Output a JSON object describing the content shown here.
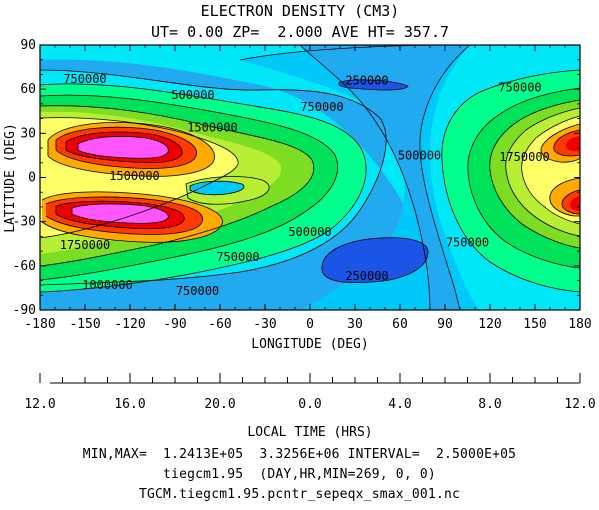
{
  "chart_data": {
    "type": "heatmap",
    "title": "ELECTRON DENSITY (CM3)",
    "subtitle": "UT= 0.00 ZP=  2.000 AVE HT= 357.7",
    "xlabel": "LONGITUDE (DEG)",
    "ylabel": "LATITUDE (DEG)",
    "xlim": [
      -180,
      180
    ],
    "ylim": [
      -90,
      90
    ],
    "x_ticks": [
      -180,
      -150,
      -120,
      -90,
      -60,
      -30,
      0,
      30,
      60,
      90,
      120,
      150,
      180
    ],
    "y_ticks": [
      -90,
      -60,
      -30,
      0,
      30,
      60,
      90
    ],
    "x_ticks_text": [
      "-180",
      "-150",
      "-120",
      "-90",
      "-60",
      "-30",
      "0",
      "30",
      "60",
      "90",
      "120",
      "150",
      "180"
    ],
    "y_ticks_text": [
      "-90",
      "-60",
      "-30",
      "0",
      "30",
      "60",
      "90"
    ],
    "contour_interval": 250000,
    "contour_labels": [
      {
        "text": "750000",
        "lon": -150,
        "lat": 67
      },
      {
        "text": "500000",
        "lon": -78,
        "lat": 56
      },
      {
        "text": "250000",
        "lon": 38,
        "lat": 66
      },
      {
        "text": "750000",
        "lon": 8,
        "lat": 48
      },
      {
        "text": "1500000",
        "lon": -65,
        "lat": 34
      },
      {
        "text": "1500000",
        "lon": -117,
        "lat": 1
      },
      {
        "text": "1750000",
        "lon": -150,
        "lat": -46
      },
      {
        "text": "1000000",
        "lon": -135,
        "lat": -73
      },
      {
        "text": "750000",
        "lon": -75,
        "lat": -77
      },
      {
        "text": "750000",
        "lon": -48,
        "lat": -54
      },
      {
        "text": "500000",
        "lon": 0,
        "lat": -37
      },
      {
        "text": "250000",
        "lon": 38,
        "lat": -67
      },
      {
        "text": "500000",
        "lon": 73,
        "lat": 15
      },
      {
        "text": "750000",
        "lon": 140,
        "lat": 61
      },
      {
        "text": "1750000",
        "lon": 143,
        "lat": 14
      },
      {
        "text": "750000",
        "lon": 105,
        "lat": -44
      }
    ],
    "local_time_axis": {
      "label": "LOCAL TIME (HRS)",
      "tick_labels": [
        {
          "text": "12.0",
          "lon": -180
        },
        {
          "text": "16.0",
          "lon": -120
        },
        {
          "text": "20.0",
          "lon": -60
        },
        {
          "text": "0.0",
          "lon": 0
        },
        {
          "text": "4.0",
          "lon": 60
        },
        {
          "text": "8.0",
          "lon": 120
        },
        {
          "text": "12.0",
          "lon": 180
        }
      ],
      "minor_step_hours": 1
    },
    "colors": [
      "#00e8f8",
      "#00c8f8",
      "#22aaf0",
      "#1a55e8",
      "#00ff8c",
      "#00e25a",
      "#7cdd22",
      "#b8ee33",
      "#ffff66",
      "#ffaa00",
      "#ff3a00",
      "#ee0000",
      "#ff55ff"
    ]
  },
  "footer": {
    "minmax": "MIN,MAX=  1.2413E+05  3.3256E+06 INTERVAL=  2.5000E+05",
    "model": "tiegcm1.95  (DAY,HR,MIN=269, 0, 0)",
    "file": "TGCM.tiegcm1.95.pcntr_sepeqx_smax_001.nc"
  }
}
